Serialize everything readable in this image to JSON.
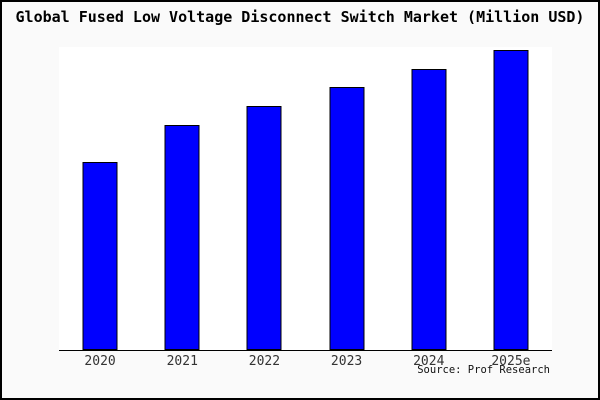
{
  "chart_data": {
    "type": "bar",
    "title": "Global Fused Low Voltage Disconnect Switch Market (Million USD)",
    "categories": [
      "2020",
      "2021",
      "2022",
      "2023",
      "2024",
      "2025e"
    ],
    "values": [
      62.2,
      74.3,
      80.6,
      86.8,
      92.8,
      99.0
    ],
    "values_relative_2020_base100": [
      100,
      119.6,
      129.6,
      139.7,
      149.2,
      159.3
    ],
    "value_units": "relative (no y-axis shown); values given as percent of plot height",
    "xlabel": "",
    "ylabel": "",
    "ylim": [
      0,
      100
    ],
    "grid": false,
    "legend": null,
    "annotation": "Source: Prof Research",
    "colors": {
      "bar_fill": "#0000ff",
      "bar_border": "#000000",
      "figure_background": "#fafafa",
      "plot_background": "#ffffff",
      "frame_border": "#000000",
      "axis_line": "#000000"
    }
  }
}
